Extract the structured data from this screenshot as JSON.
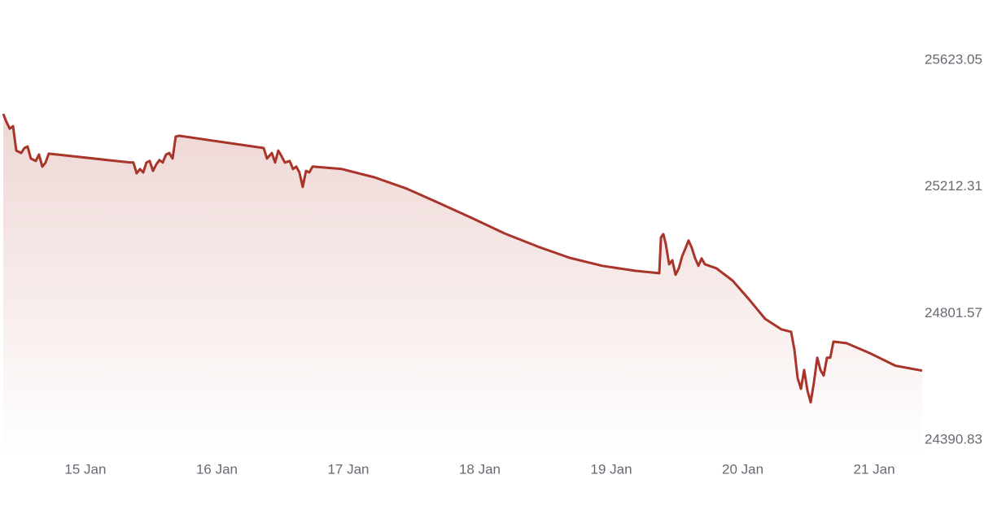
{
  "chart_data": {
    "type": "line",
    "x": [
      14.375,
      14.399,
      14.424,
      14.449,
      14.474,
      14.511,
      14.536,
      14.56,
      14.585,
      14.622,
      14.647,
      14.672,
      14.697,
      14.721,
      15.341,
      15.365,
      15.39,
      15.415,
      15.44,
      15.464,
      15.489,
      15.514,
      15.539,
      15.563,
      15.588,
      15.613,
      15.638,
      15.663,
      15.687,
      15.712,
      16.356,
      16.381,
      16.418,
      16.443,
      16.467,
      16.492,
      16.517,
      16.554,
      16.579,
      16.604,
      16.628,
      16.653,
      16.678,
      16.703,
      16.728,
      16.95,
      17.198,
      17.446,
      17.693,
      17.941,
      18.189,
      18.437,
      18.684,
      18.932,
      19.18,
      19.365,
      19.378,
      19.396,
      19.415,
      19.44,
      19.464,
      19.489,
      19.514,
      19.539,
      19.563,
      19.588,
      19.613,
      19.638,
      19.663,
      19.687,
      19.712,
      19.799,
      19.923,
      20.046,
      20.17,
      20.294,
      20.368,
      20.393,
      20.418,
      20.443,
      20.467,
      20.492,
      20.517,
      20.542,
      20.567,
      20.591,
      20.616,
      20.641,
      20.666,
      20.69,
      20.789,
      20.975,
      21.161,
      21.365
    ],
    "series": [
      {
        "color": "#a8342a",
        "values": [
          25449,
          25423,
          25401,
          25409,
          25330,
          25322,
          25338,
          25343,
          25304,
          25296,
          25317,
          25278,
          25291,
          25320,
          25291,
          25291,
          25256,
          25270,
          25259,
          25291,
          25296,
          25264,
          25285,
          25299,
          25291,
          25317,
          25322,
          25304,
          25375,
          25378,
          25338,
          25304,
          25322,
          25291,
          25330,
          25312,
          25291,
          25296,
          25270,
          25278,
          25259,
          25212,
          25264,
          25259,
          25278,
          25270,
          25243,
          25206,
          25159,
          25111,
          25061,
          25019,
          24982,
          24956,
          24940,
          24932,
          25048,
          25059,
          25027,
          24961,
          24974,
          24927,
          24948,
          24987,
          25011,
          25038,
          25014,
          24980,
          24956,
          24980,
          24961,
          24948,
          24908,
          24848,
          24784,
          24750,
          24742,
          24684,
          24592,
          24557,
          24618,
          24552,
          24513,
          24579,
          24658,
          24618,
          24600,
          24658,
          24658,
          24710,
          24705,
          24671,
          24632,
          24616
        ]
      }
    ],
    "xlim": [
      14.375,
      21.365
    ],
    "xticks": [
      {
        "value": 15,
        "label": "15 Jan"
      },
      {
        "value": 16,
        "label": "16 Jan"
      },
      {
        "value": 17,
        "label": "17 Jan"
      },
      {
        "value": 18,
        "label": "18 Jan"
      },
      {
        "value": 19,
        "label": "19 Jan"
      },
      {
        "value": 20,
        "label": "20 Jan"
      },
      {
        "value": 21,
        "label": "21 Jan"
      }
    ],
    "ylim": [
      24390.83,
      25623.05
    ],
    "yticks": [
      24390.83,
      24801.57,
      25212.31,
      25623.05
    ]
  }
}
